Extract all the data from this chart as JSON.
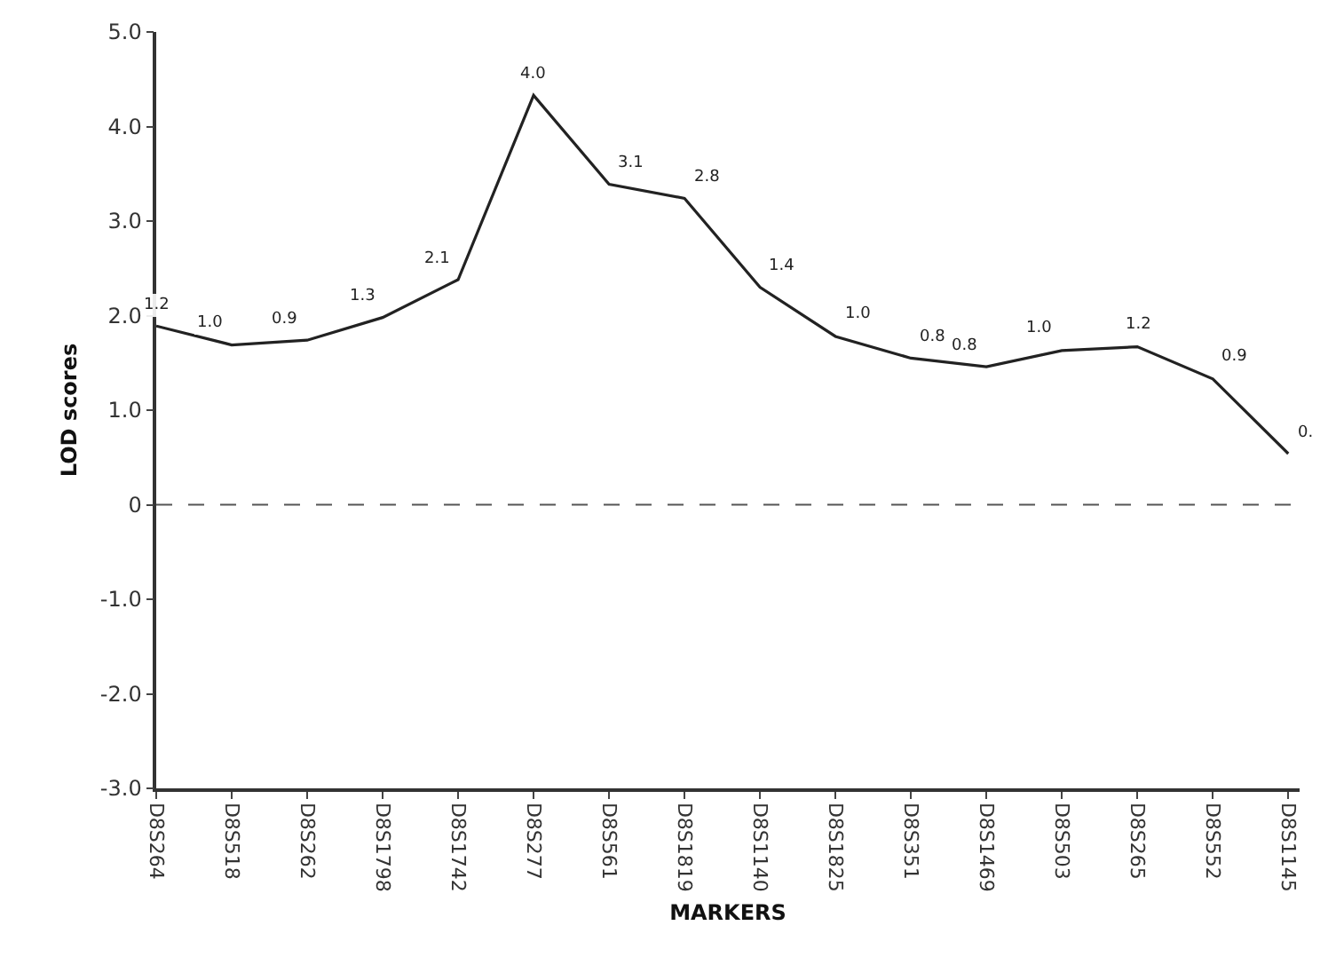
{
  "chart_data": {
    "type": "line",
    "xlabel": "MARKERS",
    "ylabel": "LOD scores",
    "categories": [
      "D8S264",
      "D8S518",
      "D8S262",
      "D8S1798",
      "D8S1742",
      "D8S277",
      "D8S561",
      "D8S1819",
      "D8S1140",
      "D8S1825",
      "D8S351",
      "D8S1469",
      "D8S503",
      "D8S265",
      "D8S552",
      "D8S1145"
    ],
    "series": [
      {
        "color": "#222222",
        "values": [
          1.89,
          1.69,
          1.74,
          1.98,
          2.38,
          4.33,
          3.39,
          3.24,
          2.3,
          1.78,
          1.55,
          1.46,
          1.63,
          1.67,
          1.33,
          0.54
        ]
      }
    ],
    "ylim": [
      -3,
      5
    ],
    "yticks": [
      {
        "value": -3,
        "label": "-3.0"
      },
      {
        "value": -2,
        "label": "-2.0"
      },
      {
        "value": -1,
        "label": "-1.0"
      },
      0,
      {
        "value": 1,
        "label": "1.0"
      },
      {
        "value": 2,
        "label": "2.0"
      },
      {
        "value": 3,
        "label": "3.0"
      },
      {
        "value": 4,
        "label": "4.0"
      },
      {
        "value": 5,
        "label": "5.0"
      }
    ],
    "ref_lines": [
      {
        "axis": "y",
        "value": 0,
        "line_style": "dashed",
        "color": "#555555"
      }
    ],
    "annotations": [
      {
        "text": "1.2",
        "x": "D8S264",
        "y": 1.89
      },
      {
        "text": "1.0",
        "x": "D8S518",
        "y": 1.69
      },
      {
        "text": "0.9",
        "x": "D8S262",
        "y": 1.74
      },
      {
        "text": "1.3",
        "x": "D8S1798",
        "y": 1.98
      },
      {
        "text": "2.1",
        "x": "D8S1742",
        "y": 2.38
      },
      {
        "text": "4.0",
        "x": "D8S277",
        "y": 4.33
      },
      {
        "text": "3.1",
        "x": "D8S561",
        "y": 3.39
      },
      {
        "text": "2.8",
        "x": "D8S1819",
        "y": 3.24
      },
      {
        "text": "1.4",
        "x": "D8S1140",
        "y": 2.3
      },
      {
        "text": "1.0",
        "x": "D8S1825",
        "y": 1.78
      },
      {
        "text": "0.8",
        "x": "D8S351",
        "y": 1.55
      },
      {
        "text": "0.8",
        "x": "D8S1469",
        "y": 1.46
      },
      {
        "text": "1.0",
        "x": "D8S503",
        "y": 1.63
      },
      {
        "text": "1.2",
        "x": "D8S265",
        "y": 1.67
      },
      {
        "text": "0.9",
        "x": "D8S552",
        "y": 1.33
      },
      {
        "text": "0.",
        "x": "D8S1145",
        "y": 0.54
      }
    ],
    "grid": false,
    "marker": "none",
    "line_style": "solid"
  }
}
